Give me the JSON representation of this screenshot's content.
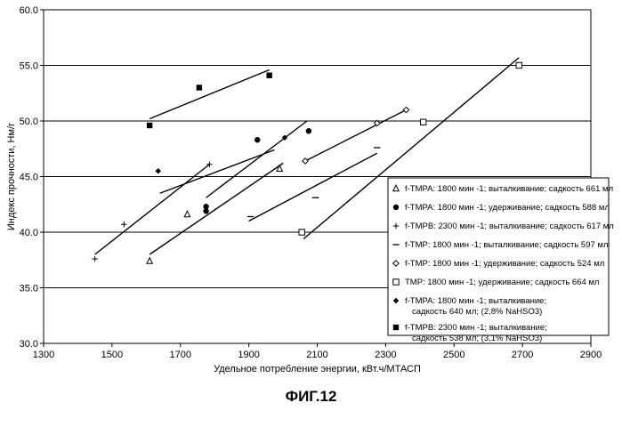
{
  "figure_caption": "ФИГ.12",
  "chart_data": {
    "type": "scatter",
    "xlabel": "Удельное потребление энергии, кВт.ч/МТАСП",
    "ylabel": "Индекс прочности, Нм/г",
    "xlim": [
      1300,
      2900
    ],
    "ylim": [
      30.0,
      60.0
    ],
    "x_ticks": [
      "1300",
      "1500",
      "1700",
      "1900",
      "2100",
      "2300",
      "2500",
      "2700",
      "2900"
    ],
    "y_ticks": [
      "30.0",
      "35.0",
      "40.0",
      "45.0",
      "50.0",
      "55.0",
      "60.0"
    ],
    "grid": "horizontal",
    "legend_position": "right",
    "series": [
      {
        "name": "f-TMPA: 1800 мин -1; выталкивание; садкость 661 мл",
        "marker": "triangle-open",
        "points": [
          [
            1610,
            37.4
          ],
          [
            1720,
            41.6
          ],
          [
            1990,
            45.7
          ]
        ],
        "trend": [
          [
            1610,
            38.0
          ],
          [
            2000,
            46.2
          ]
        ]
      },
      {
        "name": "f-TMPA: 1800 мин -1; удерживание; садкость 588 мл",
        "marker": "circle-filled",
        "points": [
          [
            1775,
            42.3
          ],
          [
            1775,
            41.9
          ],
          [
            1925,
            48.3
          ],
          [
            2075,
            49.1
          ]
        ],
        "trend": [
          [
            1775,
            43.1
          ],
          [
            2070,
            50.0
          ]
        ]
      },
      {
        "name": "f-TMPB: 2300 мин -1; выталкивание; садкость 617 мл",
        "marker": "plus",
        "points": [
          [
            1450,
            37.6
          ],
          [
            1535,
            40.7
          ],
          [
            1785,
            46.1
          ]
        ],
        "trend": [
          [
            1450,
            38.0
          ],
          [
            1785,
            46.1
          ]
        ]
      },
      {
        "name": "f-TMP: 1800 мин -1; выталкивание; садкость 597 мл",
        "marker": "dash",
        "points": [
          [
            1905,
            41.4
          ],
          [
            2095,
            43.1
          ],
          [
            2275,
            47.6
          ]
        ],
        "trend": [
          [
            1900,
            41.0
          ],
          [
            2275,
            47.1
          ]
        ]
      },
      {
        "name": "f-TMP: 1800 мин -1; удерживание; садкость  524 мл",
        "marker": "diamond-open",
        "points": [
          [
            2065,
            46.4
          ],
          [
            2275,
            49.8
          ],
          [
            2360,
            51.0
          ]
        ],
        "trend": [
          [
            2065,
            46.4
          ],
          [
            2360,
            51.0
          ]
        ]
      },
      {
        "name": "TMP: 1800 мин -1; удерживание; садкость  664 мл",
        "marker": "square-open",
        "points": [
          [
            2055,
            40.0
          ],
          [
            2410,
            49.9
          ],
          [
            2690,
            55.0
          ]
        ],
        "trend": [
          [
            2060,
            39.4
          ],
          [
            2690,
            55.7
          ]
        ]
      },
      {
        "name": "f-TMPA: 1800 мин -1; выталкивание; садкость 640 мл; (2,8% NaHSO3)",
        "legend_lines": [
          "f-TMPA: 1800 мин -1; выталкивание;",
          "садкость 640 мл; (2,8% NaHSO3)"
        ],
        "marker": "diamond-filled",
        "points": [
          [
            1635,
            45.5
          ],
          [
            2005,
            48.5
          ]
        ],
        "trend": [
          [
            1640,
            43.5
          ],
          [
            1975,
            47.4
          ]
        ]
      },
      {
        "name": "f-TMPB: 2300 мин -1; выталкивание; садкость 538 мл; (3,1% NaHSO3)",
        "legend_lines": [
          "f-TMPB: 2300 мин -1; выталкивание;",
          "садкость 538 мл; (3,1% NaHSO3)"
        ],
        "marker": "square-filled",
        "points": [
          [
            1610,
            49.6
          ],
          [
            1755,
            53.0
          ],
          [
            1960,
            54.1
          ]
        ],
        "trend": [
          [
            1610,
            50.2
          ],
          [
            1960,
            54.6
          ]
        ]
      }
    ]
  }
}
